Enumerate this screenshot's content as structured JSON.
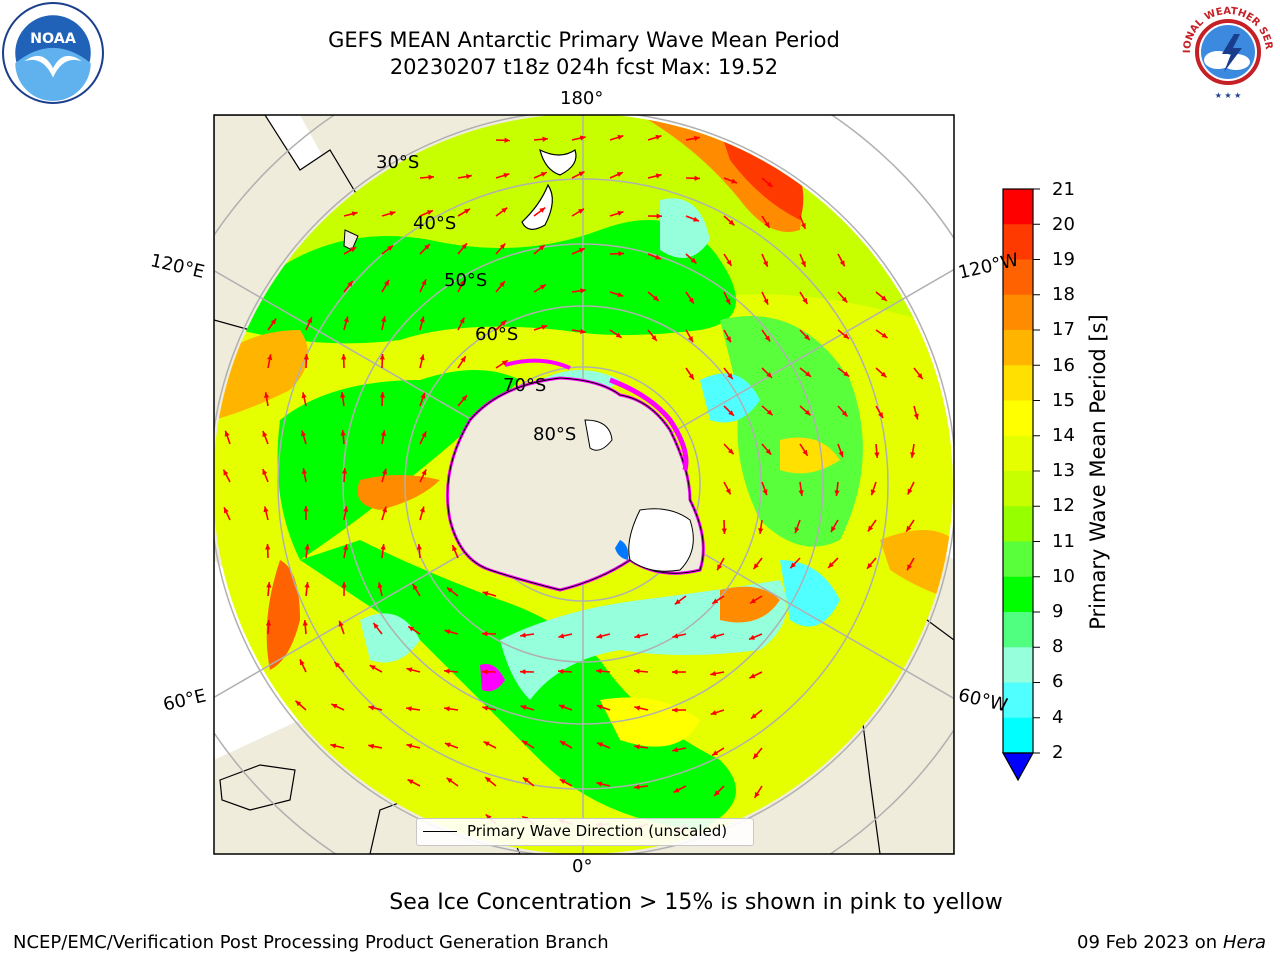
{
  "header": {
    "title_line1": "GEFS MEAN Antarctic Primary Wave Mean Period",
    "title_line2": "20230207 t18z 024h fcst   Max: 19.52"
  },
  "logos": {
    "left": {
      "icon": "noaa-logo",
      "text": "NOAA"
    },
    "right": {
      "icon": "nws-logo",
      "text": "NATIONAL WEATHER SERVICE"
    }
  },
  "map": {
    "projection": "south-polar-stereographic",
    "longitude_labels": {
      "top": "180°",
      "bottom": "0°",
      "left_upper": "120°E",
      "left_lower": "60°E",
      "right_upper": "120°W",
      "right_lower": "60°W"
    },
    "latitude_labels": [
      "30°S",
      "40°S",
      "50°S",
      "60°S",
      "70°S",
      "80°S"
    ],
    "legend": "Primary Wave Direction (unscaled)",
    "arrow_color": "#ff0000",
    "land_color": "#efecdc",
    "sea_ice_color": "#ff00ff"
  },
  "colorbar": {
    "ticks": [
      "21",
      "20",
      "19",
      "18",
      "17",
      "16",
      "15",
      "14",
      "13",
      "12",
      "11",
      "10",
      "9",
      "8",
      "6",
      "4",
      "2"
    ],
    "colors": [
      "#ff0000",
      "#ff3a00",
      "#ff6200",
      "#ff8c00",
      "#ffb400",
      "#ffe000",
      "#ffff00",
      "#e6ff00",
      "#c8ff00",
      "#96ff00",
      "#5aff3c",
      "#00ff00",
      "#50ff80",
      "#96ffdc",
      "#50ffff",
      "#00ffff",
      "#00c8ff",
      "#0078ff"
    ],
    "underflow_color": "#0000ff",
    "label": "Primary Wave Mean Period [s]"
  },
  "footer": {
    "note": "Sea Ice Concentration > 15% is shown in pink to yellow",
    "branch": "NCEP/EMC/Verification Post Processing Product Generation Branch",
    "date": "09 Feb 2023 on",
    "machine": "Hera"
  }
}
